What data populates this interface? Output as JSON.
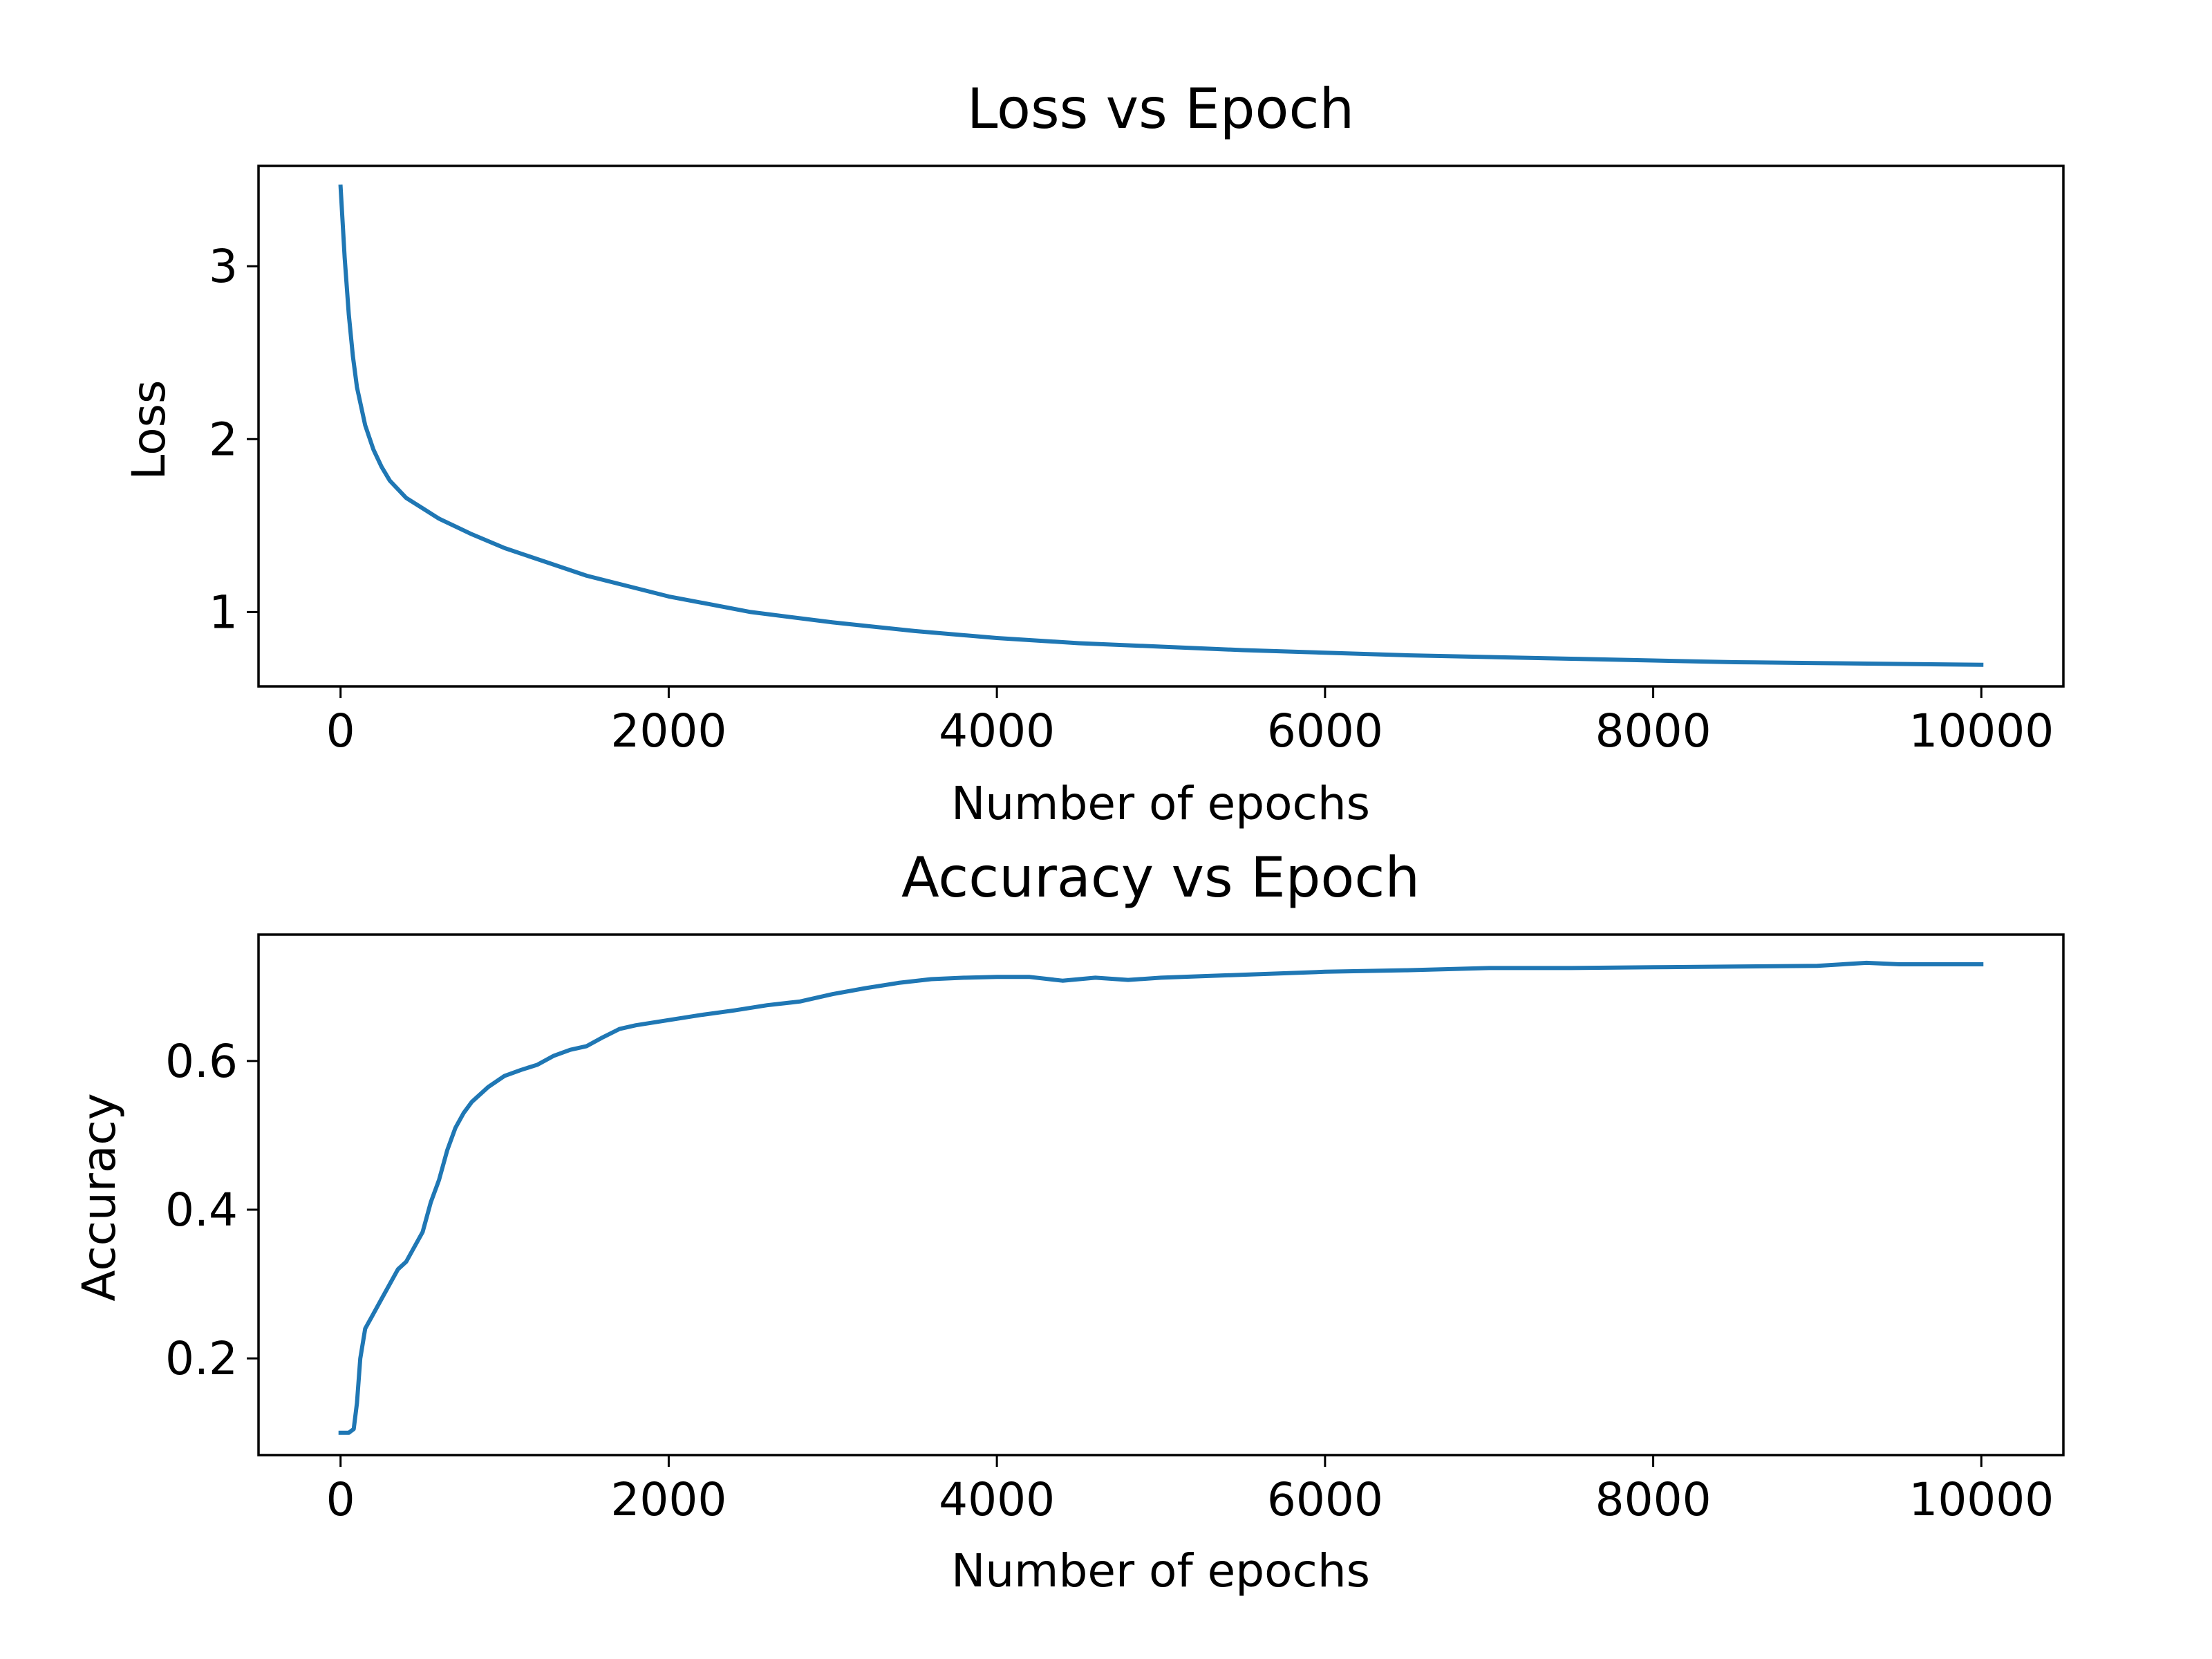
{
  "colors": {
    "series": "#1f77b4",
    "axis": "#000000",
    "background": "#ffffff"
  },
  "chart_data": [
    {
      "type": "line",
      "title": "Loss vs Epoch",
      "xlabel": "Number of epochs",
      "ylabel": "Loss",
      "xlim": [
        -500,
        10500
      ],
      "ylim": [
        0.57,
        3.58
      ],
      "grid": false,
      "xticks": [
        0,
        2000,
        4000,
        6000,
        8000,
        10000
      ],
      "xtick_labels": [
        "0",
        "2000",
        "4000",
        "6000",
        "8000",
        "10000"
      ],
      "yticks": [
        1,
        2,
        3
      ],
      "ytick_labels": [
        "1",
        "2",
        "3"
      ],
      "series": [
        {
          "x": [
            0,
            25,
            50,
            75,
            100,
            150,
            200,
            250,
            300,
            400,
            500,
            600,
            800,
            1000,
            1250,
            1500,
            1750,
            2000,
            2500,
            3000,
            3500,
            4000,
            4500,
            5000,
            5500,
            6000,
            6500,
            7000,
            7500,
            8000,
            8500,
            9000,
            9500,
            10000
          ],
          "y": [
            3.46,
            3.05,
            2.72,
            2.48,
            2.3,
            2.08,
            1.94,
            1.84,
            1.76,
            1.66,
            1.6,
            1.54,
            1.45,
            1.37,
            1.29,
            1.21,
            1.15,
            1.09,
            1.0,
            0.94,
            0.89,
            0.85,
            0.82,
            0.8,
            0.78,
            0.765,
            0.75,
            0.74,
            0.73,
            0.72,
            0.71,
            0.705,
            0.7,
            0.695
          ]
        }
      ]
    },
    {
      "type": "line",
      "title": "Accuracy vs Epoch",
      "xlabel": "Number of epochs",
      "ylabel": "Accuracy",
      "xlim": [
        -500,
        10500
      ],
      "ylim": [
        0.07,
        0.77
      ],
      "grid": false,
      "xticks": [
        0,
        2000,
        4000,
        6000,
        8000,
        10000
      ],
      "xtick_labels": [
        "0",
        "2000",
        "4000",
        "6000",
        "8000",
        "10000"
      ],
      "yticks": [
        0.2,
        0.4,
        0.6
      ],
      "ytick_labels": [
        "0.2",
        "0.4",
        "0.6"
      ],
      "series": [
        {
          "x": [
            0,
            50,
            80,
            100,
            120,
            150,
            200,
            250,
            300,
            350,
            400,
            450,
            500,
            550,
            600,
            650,
            700,
            750,
            800,
            900,
            1000,
            1100,
            1200,
            1300,
            1400,
            1500,
            1600,
            1700,
            1800,
            2000,
            2200,
            2400,
            2600,
            2800,
            3000,
            3200,
            3400,
            3600,
            3800,
            4000,
            4200,
            4400,
            4600,
            4800,
            5000,
            5500,
            6000,
            6500,
            7000,
            7500,
            8000,
            8500,
            9000,
            9300,
            9500,
            10000
          ],
          "y": [
            0.1,
            0.1,
            0.105,
            0.14,
            0.2,
            0.24,
            0.26,
            0.28,
            0.3,
            0.32,
            0.33,
            0.35,
            0.37,
            0.41,
            0.44,
            0.48,
            0.51,
            0.53,
            0.545,
            0.565,
            0.58,
            0.588,
            0.595,
            0.607,
            0.615,
            0.62,
            0.632,
            0.643,
            0.648,
            0.655,
            0.662,
            0.668,
            0.675,
            0.68,
            0.69,
            0.698,
            0.705,
            0.71,
            0.712,
            0.713,
            0.713,
            0.708,
            0.712,
            0.709,
            0.712,
            0.716,
            0.72,
            0.722,
            0.725,
            0.725,
            0.726,
            0.727,
            0.728,
            0.732,
            0.73,
            0.73
          ]
        }
      ]
    }
  ]
}
